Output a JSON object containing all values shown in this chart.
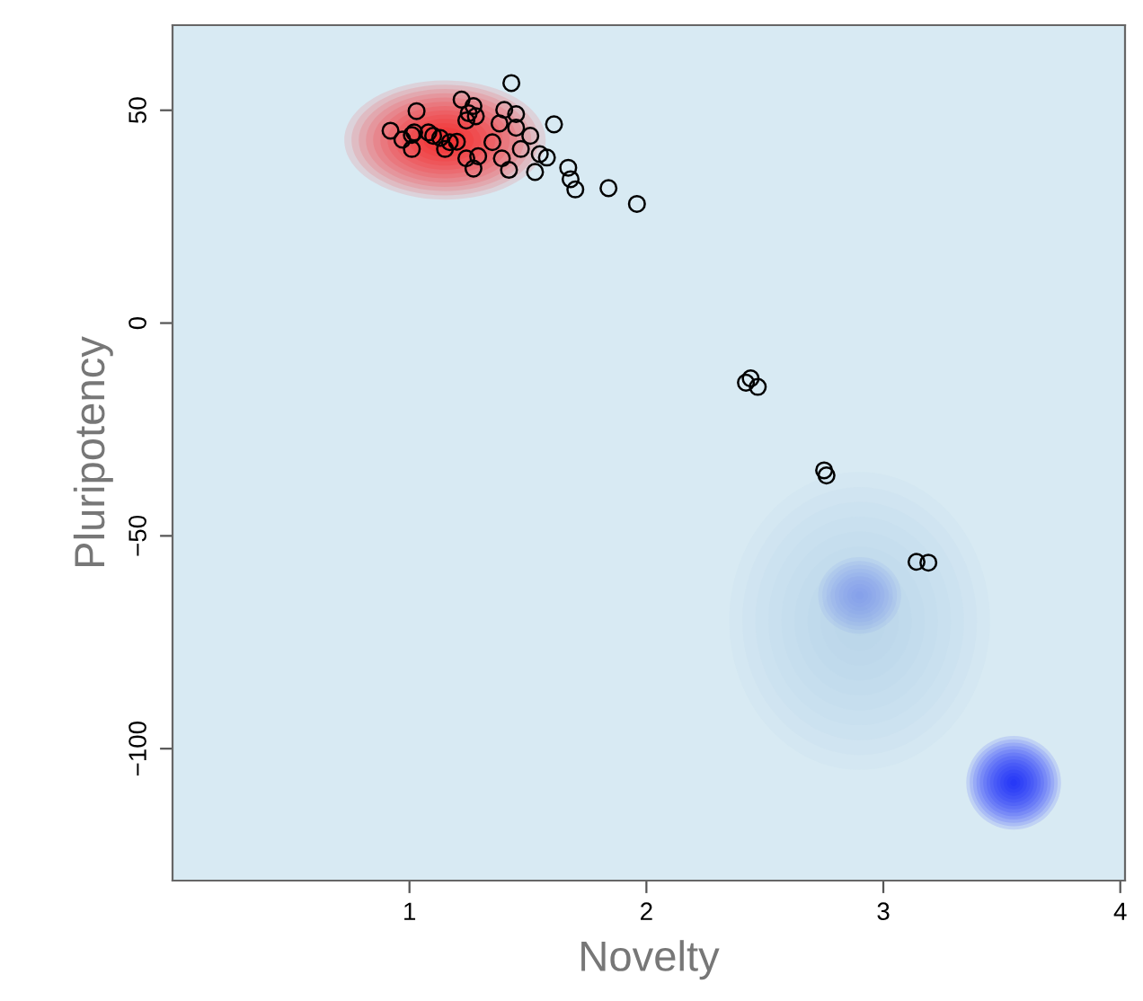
{
  "chart_data": {
    "type": "scatter",
    "xlabel": "Novelty",
    "ylabel": "Pluripotency",
    "marker": "circle",
    "grid": false,
    "legend": false,
    "xlim": [
      0,
      4.02
    ],
    "ylim": [
      -131,
      70
    ],
    "xticks": [
      1,
      2,
      3,
      4
    ],
    "yticks": [
      -100,
      -50,
      0,
      50
    ],
    "series": [
      {
        "color": "#000000",
        "x": [
          0.92,
          0.97,
          1.01,
          1.03,
          1.01,
          1.02,
          1.08,
          1.1,
          1.13,
          1.15,
          1.17,
          1.2,
          1.22,
          1.24,
          1.25,
          1.27,
          1.28,
          1.24,
          1.27,
          1.29,
          1.35,
          1.38,
          1.4,
          1.43,
          1.45,
          1.45,
          1.47,
          1.39,
          1.42,
          1.51,
          1.53,
          1.55,
          1.58,
          1.61,
          1.67,
          1.68,
          1.7,
          1.84,
          1.96,
          2.42,
          2.44,
          2.47,
          2.75,
          2.76,
          3.14,
          3.19
        ],
        "values": [
          45.2,
          43.1,
          44.2,
          49.8,
          40.9,
          44.8,
          44.8,
          44.0,
          43.5,
          40.9,
          42.5,
          42.6,
          52.5,
          47.6,
          49.3,
          51.0,
          48.6,
          38.7,
          36.3,
          39.2,
          42.5,
          46.9,
          50.1,
          56.4,
          49.1,
          45.9,
          40.9,
          38.7,
          36.0,
          44.0,
          35.5,
          39.7,
          38.9,
          46.7,
          36.5,
          33.8,
          31.4,
          31.7,
          28.0,
          -14.0,
          -13.0,
          -15.0,
          -34.6,
          -35.8,
          -56.1,
          -56.3
        ]
      }
    ]
  }
}
